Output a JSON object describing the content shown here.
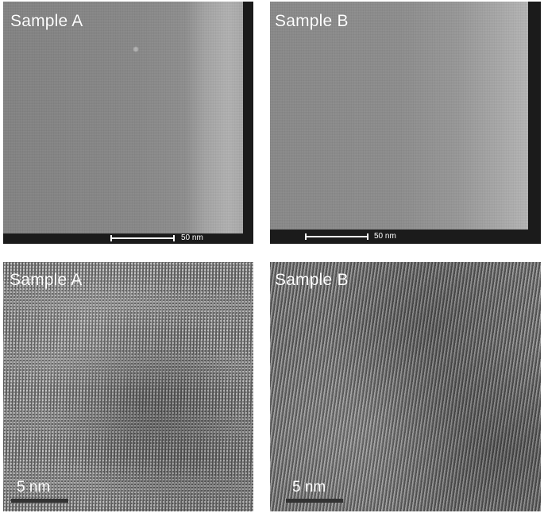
{
  "panels": {
    "sem_a": {
      "label": "Sample A",
      "scale_bar": "50 nm"
    },
    "sem_b": {
      "label": "Sample B",
      "scale_bar": "50 nm"
    },
    "tem_a": {
      "label": "Sample A",
      "scale_bar": "5 nm"
    },
    "tem_b": {
      "label": "Sample B",
      "scale_bar": "5 nm"
    }
  },
  "colors": {
    "label_text": "#ffffff",
    "frame": "#1b1b1b",
    "scale_bar_dark": "#333333"
  }
}
